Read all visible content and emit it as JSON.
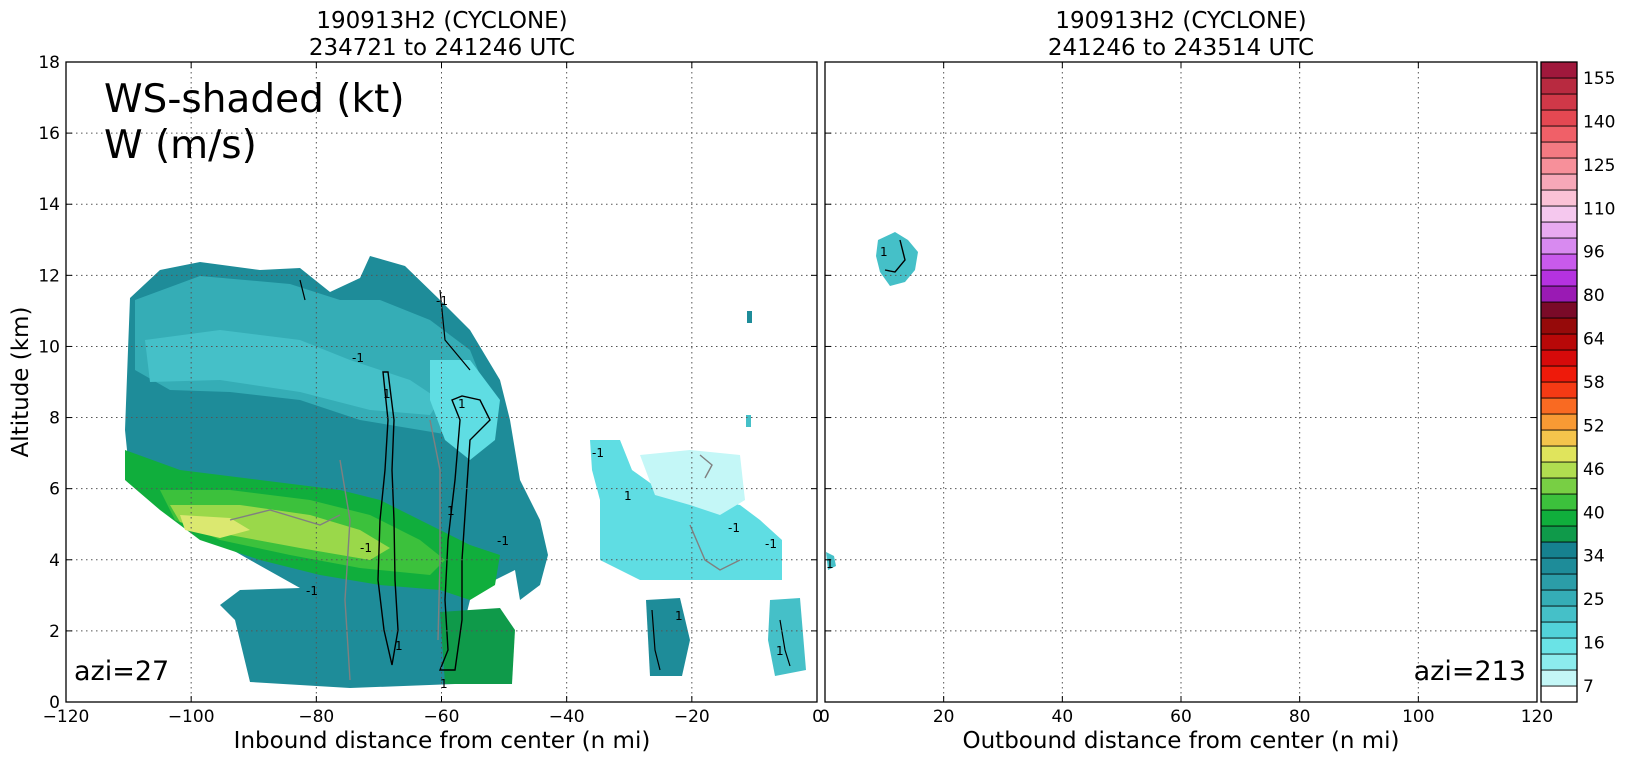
{
  "colors": {
    "teal_dark": "#1e8c99",
    "teal_mid": "#2b9da8",
    "teal_light": "#45c0c8",
    "cyan": "#5fdde3",
    "cyan_light": "#c4f7f7",
    "green_dark": "#0aa64a",
    "green": "#3cc13c",
    "green_light": "#9ad84a",
    "yellow": "#dbe870",
    "contour_w": "#000000",
    "contour_gray": "#808080"
  },
  "chart_data": [
    {
      "type": "heatmap",
      "panel": "left",
      "title_line1": "190913H2 (CYCLONE)",
      "title_line2": "234721 to 241246 UTC",
      "xlabel": "Inbound distance from center (n mi)",
      "ylabel": "Altitude (km)",
      "xlim": [
        -120,
        0
      ],
      "ylim": [
        0,
        18
      ],
      "x_ticks": [
        "−120",
        "−100",
        "−80",
        "−60",
        "−40",
        "−20",
        "0"
      ],
      "y_ticks": [
        "0",
        "2",
        "4",
        "6",
        "8",
        "10",
        "12",
        "14",
        "16",
        "18"
      ],
      "grid": true,
      "annotation_line1": "WS-shaded (kt)",
      "annotation_line2": "W (m/s)",
      "azimuth_label": "azi=27",
      "contour_labels": [
        "-1",
        "1",
        "-1",
        "1",
        "1",
        "-1",
        "-1",
        "1",
        "1",
        "-1",
        "-1",
        "1",
        "-1",
        "-1",
        "1",
        "1"
      ]
    },
    {
      "type": "heatmap",
      "panel": "right",
      "title_line1": "190913H2 (CYCLONE)",
      "title_line2": "241246 to 243514 UTC",
      "xlabel": "Outbound distance from center (n mi)",
      "xlim": [
        0,
        120
      ],
      "ylim": [
        0,
        18
      ],
      "x_ticks": [
        "0",
        "20",
        "40",
        "60",
        "80",
        "100",
        "120"
      ],
      "grid": true,
      "azimuth_label": "azi=213",
      "contour_labels": [
        "1",
        "1"
      ]
    }
  ],
  "colorbar": {
    "tick_labels": [
      "155",
      "140",
      "125",
      "110",
      "96",
      "80",
      "64",
      "58",
      "52",
      "46",
      "40",
      "34",
      "25",
      "16",
      "7"
    ],
    "levels": [
      {
        "color": "#ffffff"
      },
      {
        "color": "#c4f7f7"
      },
      {
        "color": "#8ceced"
      },
      {
        "color": "#6ae3e6"
      },
      {
        "color": "#52d2d9"
      },
      {
        "color": "#45c0c8"
      },
      {
        "color": "#35adb6"
      },
      {
        "color": "#2b9da8"
      },
      {
        "color": "#1e8c99"
      },
      {
        "color": "#16818f"
      },
      {
        "color": "#0f9a4a"
      },
      {
        "color": "#10ae3c"
      },
      {
        "color": "#3cc13c"
      },
      {
        "color": "#78cf44"
      },
      {
        "color": "#b0dd50"
      },
      {
        "color": "#e0e45c"
      },
      {
        "color": "#f4c44c"
      },
      {
        "color": "#f89a34"
      },
      {
        "color": "#f96a22"
      },
      {
        "color": "#f53a14"
      },
      {
        "color": "#ee1a0a"
      },
      {
        "color": "#d60a0a"
      },
      {
        "color": "#b80808"
      },
      {
        "color": "#960a0a"
      },
      {
        "color": "#7a0a28"
      },
      {
        "color": "#9a1ab4"
      },
      {
        "color": "#b532e0"
      },
      {
        "color": "#c85aec"
      },
      {
        "color": "#d88af0"
      },
      {
        "color": "#e8aaf0"
      },
      {
        "color": "#f5c8ee"
      },
      {
        "color": "#fbc2d6"
      },
      {
        "color": "#f7a8b8"
      },
      {
        "color": "#f7909a"
      },
      {
        "color": "#f47a82"
      },
      {
        "color": "#f06068"
      },
      {
        "color": "#e44852"
      },
      {
        "color": "#d03848"
      },
      {
        "color": "#b82a40"
      },
      {
        "color": "#a0183c"
      }
    ]
  }
}
